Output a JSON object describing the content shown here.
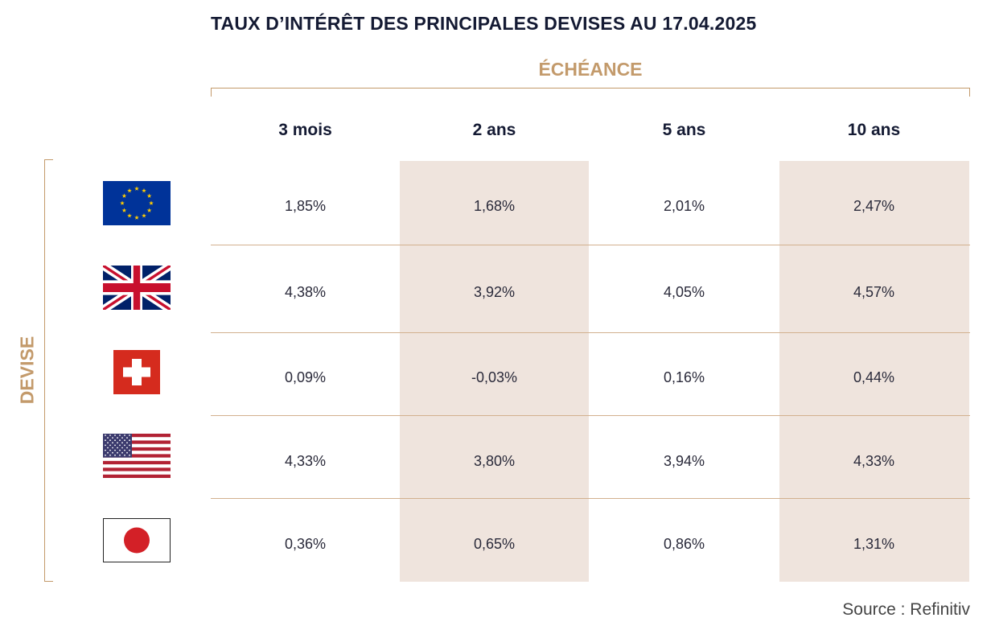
{
  "title": "TAUX D’INTÉRÊT DES PRINCIPALES DEVISES AU 17.04.2025",
  "column_group_label": "ÉCHÉANCE",
  "row_group_label": "DEVISE",
  "columns": [
    "3 mois",
    "2 ans",
    "5 ans",
    "10 ans"
  ],
  "rows": [
    {
      "flag": "eu-flag-icon",
      "values": [
        "1,85%",
        "1,68%",
        "2,01%",
        "2,47%"
      ]
    },
    {
      "flag": "uk-flag-icon",
      "values": [
        "4,38%",
        "3,92%",
        "4,05%",
        "4,57%"
      ]
    },
    {
      "flag": "swiss-flag-icon",
      "values": [
        "0,09%",
        "-0,03%",
        "0,16%",
        "0,44%"
      ]
    },
    {
      "flag": "us-flag-icon",
      "values": [
        "4,33%",
        "3,80%",
        "3,94%",
        "4,33%"
      ]
    },
    {
      "flag": "japan-flag-icon",
      "values": [
        "0,36%",
        "0,65%",
        "0,86%",
        "1,31%"
      ]
    }
  ],
  "source": "Source : Refinitiv",
  "colors": {
    "accent": "#c39a6b",
    "shade": "#efe4dd",
    "title": "#141a33"
  }
}
